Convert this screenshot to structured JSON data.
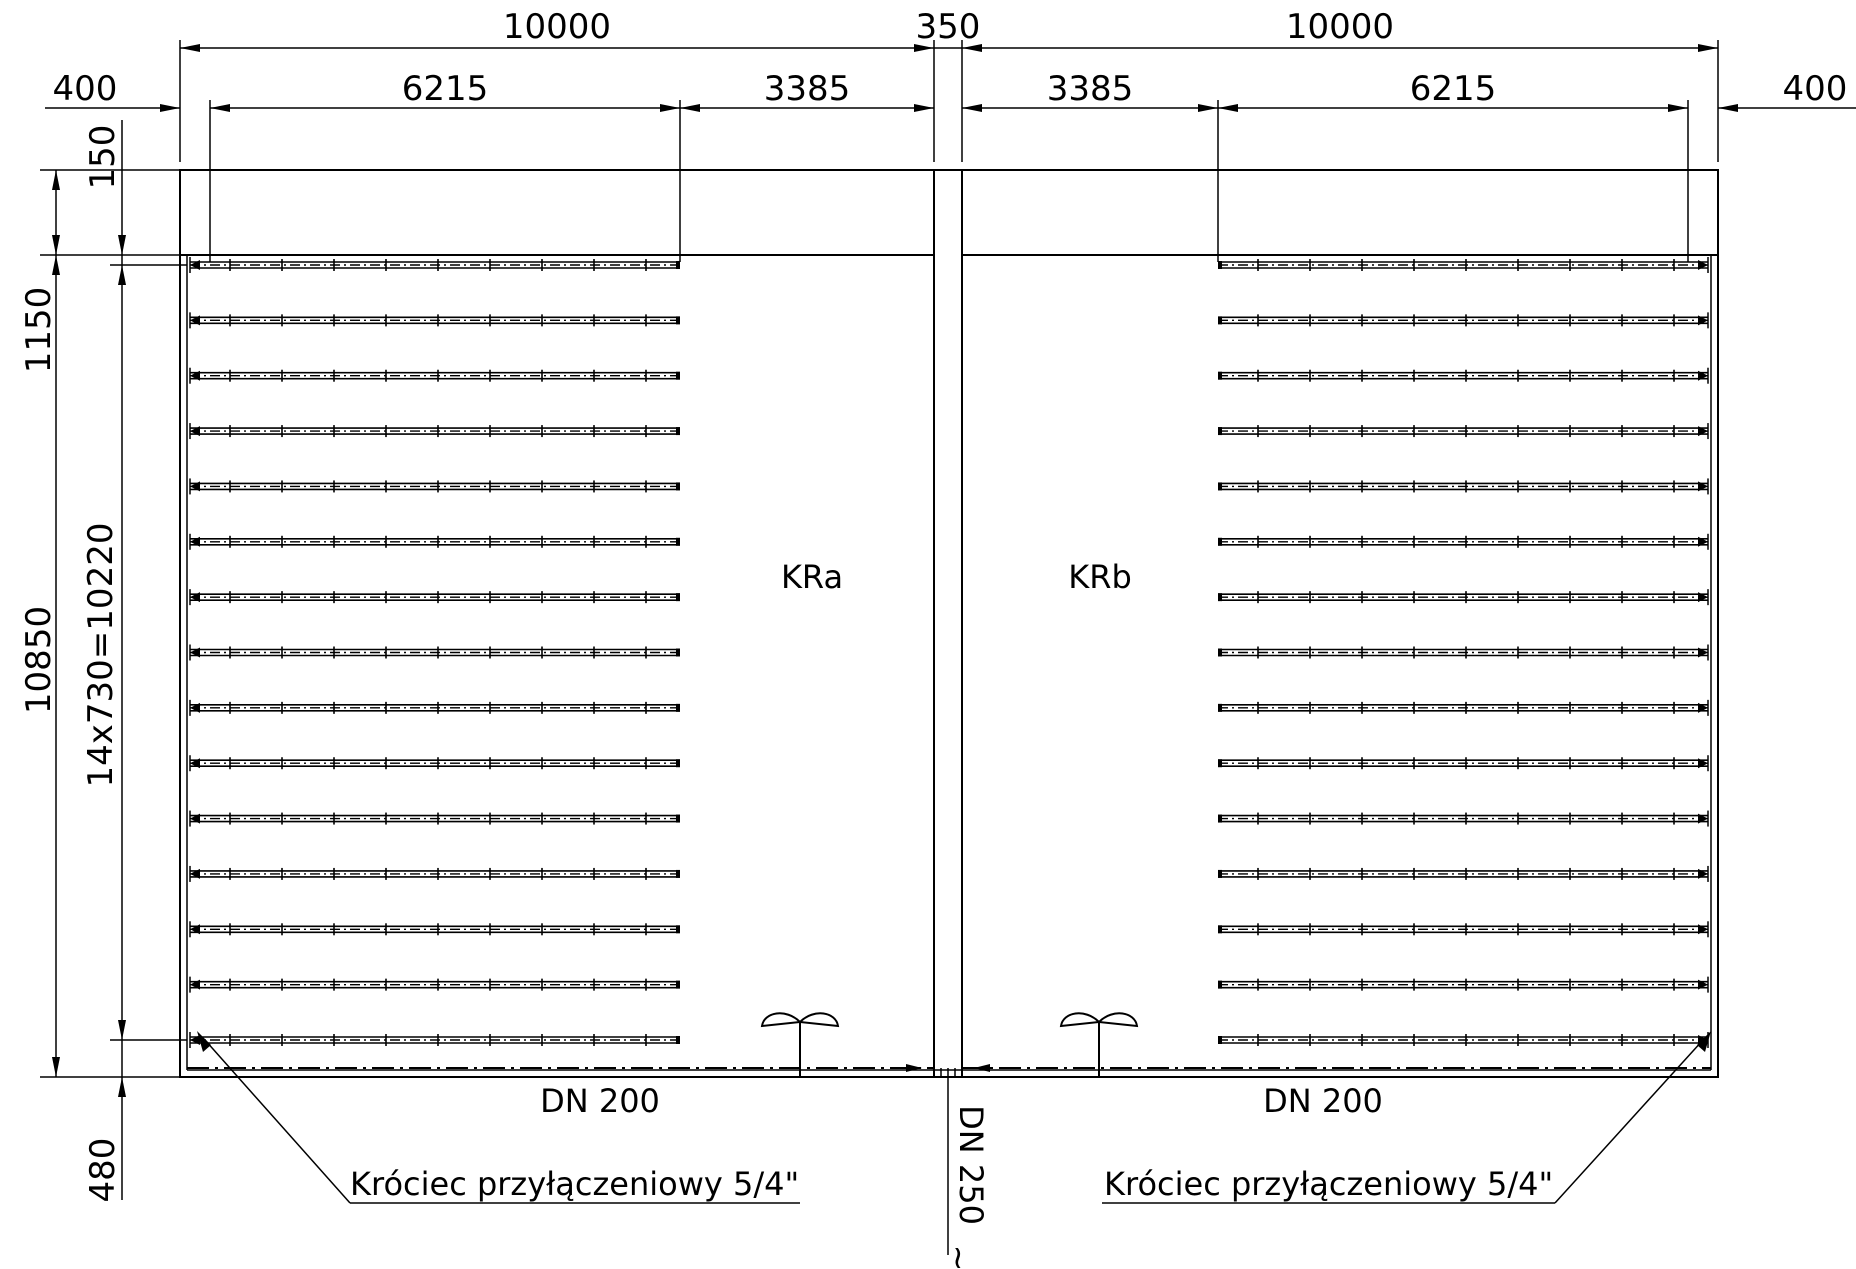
{
  "dimensions": {
    "top_left_width": "10000",
    "top_center_width": "350",
    "top_right_width": "10000",
    "left_margin": "400",
    "right_margin": "400",
    "left_pipe_length": "6215",
    "left_gap": "3385",
    "right_gap": "3385",
    "right_pipe_length": "6215",
    "top_strip": "150",
    "upper_height": "1150",
    "pipe_spacing": "14x730=10220",
    "total_height": "10850",
    "bottom_height": "480"
  },
  "zones": {
    "left": "KRa",
    "right": "KRb"
  },
  "labels": {
    "left_main_pipe": "DN 200",
    "right_main_pipe": "DN 200",
    "outlet_pipe": "DN 250",
    "left_connection": "Króciec przyłączeniowy 5/4\"",
    "right_connection": "Króciec przyłączeniowy 5/4\"",
    "outlet_continuation": "~"
  },
  "layout_info": {
    "drain_rows_per_side": 15
  }
}
